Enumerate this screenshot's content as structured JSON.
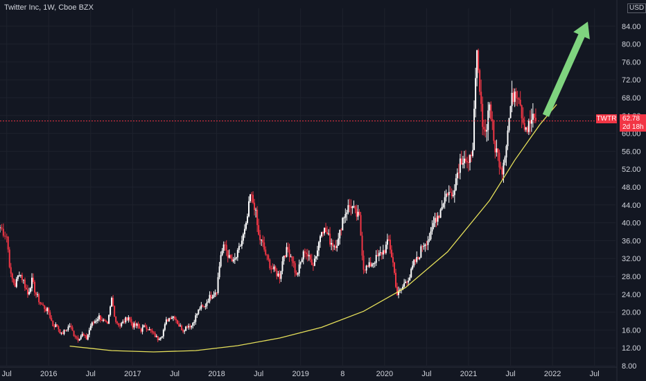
{
  "header": {
    "title": "Twitter Inc, 1W, Cboe BZX",
    "currency": "USD"
  },
  "price_label": {
    "ticker": "TWTR",
    "price": "62.78",
    "timer": "2d 18h"
  },
  "colors": {
    "background": "#131722",
    "up": "#ffffff",
    "down": "#f23645",
    "curve": "#e6e05a",
    "arrow": "#7fd47f",
    "price_line": "#f23645"
  },
  "chart_data": {
    "type": "candlestick",
    "title": "Twitter Inc, 1W, Cboe BZX",
    "ylim": [
      8,
      88
    ],
    "y_ticks": [
      "84.00",
      "80.00",
      "76.00",
      "72.00",
      "68.00",
      "64.00",
      "60.00",
      "56.00",
      "52.00",
      "48.00",
      "44.00",
      "40.00",
      "36.00",
      "32.00",
      "28.00",
      "24.00",
      "20.00",
      "16.00",
      "12.00",
      "8.00"
    ],
    "x_ticks": [
      "Jul",
      "2016",
      "Jul",
      "2017",
      "Jul",
      "2018",
      "Jul",
      "2019",
      "8",
      "2020",
      "Jul",
      "2021",
      "Jul",
      "2022",
      "Jul"
    ],
    "x_range": [
      2015.42,
      2022.75
    ],
    "x_tick_values": [
      2015.5,
      2016.0,
      2016.5,
      2017.0,
      2017.5,
      2018.0,
      2018.5,
      2019.0,
      2019.5,
      2020.0,
      2020.5,
      2021.0,
      2021.5,
      2022.0,
      2022.5
    ],
    "last_price": 62.78,
    "closes": [
      [
        2015.42,
        39
      ],
      [
        2015.5,
        37
      ],
      [
        2015.55,
        28
      ],
      [
        2015.6,
        26
      ],
      [
        2015.65,
        29
      ],
      [
        2015.7,
        27
      ],
      [
        2015.75,
        24
      ],
      [
        2015.8,
        27
      ],
      [
        2015.85,
        24
      ],
      [
        2015.9,
        22
      ],
      [
        2015.95,
        21
      ],
      [
        2016.0,
        20
      ],
      [
        2016.05,
        17
      ],
      [
        2016.1,
        17
      ],
      [
        2016.15,
        15
      ],
      [
        2016.2,
        16
      ],
      [
        2016.25,
        17
      ],
      [
        2016.3,
        15
      ],
      [
        2016.35,
        14
      ],
      [
        2016.4,
        15
      ],
      [
        2016.45,
        14
      ],
      [
        2016.5,
        17
      ],
      [
        2016.55,
        18
      ],
      [
        2016.6,
        19
      ],
      [
        2016.65,
        18
      ],
      [
        2016.7,
        17
      ],
      [
        2016.75,
        23
      ],
      [
        2016.8,
        18
      ],
      [
        2016.85,
        17
      ],
      [
        2016.9,
        18
      ],
      [
        2016.95,
        19
      ],
      [
        2017.0,
        17
      ],
      [
        2017.05,
        17
      ],
      [
        2017.1,
        16
      ],
      [
        2017.15,
        17
      ],
      [
        2017.2,
        16
      ],
      [
        2017.25,
        15
      ],
      [
        2017.3,
        14
      ],
      [
        2017.35,
        15
      ],
      [
        2017.4,
        18
      ],
      [
        2017.45,
        19
      ],
      [
        2017.5,
        19
      ],
      [
        2017.55,
        17
      ],
      [
        2017.6,
        16
      ],
      [
        2017.65,
        17
      ],
      [
        2017.7,
        17
      ],
      [
        2017.75,
        19
      ],
      [
        2017.8,
        21
      ],
      [
        2017.85,
        21
      ],
      [
        2017.9,
        23
      ],
      [
        2017.95,
        24
      ],
      [
        2018.0,
        25
      ],
      [
        2018.05,
        33
      ],
      [
        2018.1,
        35
      ],
      [
        2018.15,
        32
      ],
      [
        2018.2,
        31
      ],
      [
        2018.25,
        33
      ],
      [
        2018.3,
        36
      ],
      [
        2018.35,
        39
      ],
      [
        2018.4,
        46
      ],
      [
        2018.45,
        44
      ],
      [
        2018.5,
        37
      ],
      [
        2018.55,
        35
      ],
      [
        2018.6,
        32
      ],
      [
        2018.65,
        30
      ],
      [
        2018.7,
        29
      ],
      [
        2018.75,
        28
      ],
      [
        2018.8,
        33
      ],
      [
        2018.85,
        34
      ],
      [
        2018.9,
        32
      ],
      [
        2018.95,
        28
      ],
      [
        2019.0,
        31
      ],
      [
        2019.05,
        34
      ],
      [
        2019.1,
        32
      ],
      [
        2019.15,
        31
      ],
      [
        2019.2,
        34
      ],
      [
        2019.25,
        39
      ],
      [
        2019.3,
        38
      ],
      [
        2019.35,
        36
      ],
      [
        2019.4,
        35
      ],
      [
        2019.45,
        36
      ],
      [
        2019.5,
        41
      ],
      [
        2019.55,
        43
      ],
      [
        2019.6,
        44
      ],
      [
        2019.65,
        42
      ],
      [
        2019.7,
        41
      ],
      [
        2019.75,
        30
      ],
      [
        2019.8,
        30
      ],
      [
        2019.85,
        31
      ],
      [
        2019.9,
        32
      ],
      [
        2019.95,
        33
      ],
      [
        2020.0,
        34
      ],
      [
        2020.05,
        36
      ],
      [
        2020.1,
        31
      ],
      [
        2020.15,
        24
      ],
      [
        2020.2,
        25
      ],
      [
        2020.25,
        27
      ],
      [
        2020.3,
        28
      ],
      [
        2020.35,
        31
      ],
      [
        2020.4,
        32
      ],
      [
        2020.45,
        35
      ],
      [
        2020.5,
        36
      ],
      [
        2020.55,
        37
      ],
      [
        2020.6,
        41
      ],
      [
        2020.65,
        42
      ],
      [
        2020.7,
        45
      ],
      [
        2020.75,
        47
      ],
      [
        2020.8,
        46
      ],
      [
        2020.85,
        50
      ],
      [
        2020.9,
        54
      ],
      [
        2020.95,
        55
      ],
      [
        2021.0,
        52
      ],
      [
        2021.05,
        58
      ],
      [
        2021.1,
        77
      ],
      [
        2021.15,
        65
      ],
      [
        2021.2,
        60
      ],
      [
        2021.25,
        67
      ],
      [
        2021.3,
        58
      ],
      [
        2021.35,
        55
      ],
      [
        2021.4,
        52
      ],
      [
        2021.45,
        58
      ],
      [
        2021.5,
        66
      ],
      [
        2021.55,
        70
      ],
      [
        2021.6,
        69
      ],
      [
        2021.65,
        63
      ],
      [
        2021.7,
        61
      ],
      [
        2021.75,
        63
      ],
      [
        2021.8,
        62.78
      ]
    ],
    "trend_curve": [
      [
        2016.25,
        12.4
      ],
      [
        2016.75,
        11.4
      ],
      [
        2017.25,
        11.1
      ],
      [
        2017.75,
        11.4
      ],
      [
        2018.25,
        12.5
      ],
      [
        2018.75,
        14.2
      ],
      [
        2019.25,
        16.6
      ],
      [
        2019.75,
        20.2
      ],
      [
        2020.25,
        25.5
      ],
      [
        2020.75,
        33.5
      ],
      [
        2021.25,
        45
      ],
      [
        2021.55,
        54
      ],
      [
        2021.85,
        62
      ],
      [
        2022.05,
        66.5
      ]
    ]
  }
}
